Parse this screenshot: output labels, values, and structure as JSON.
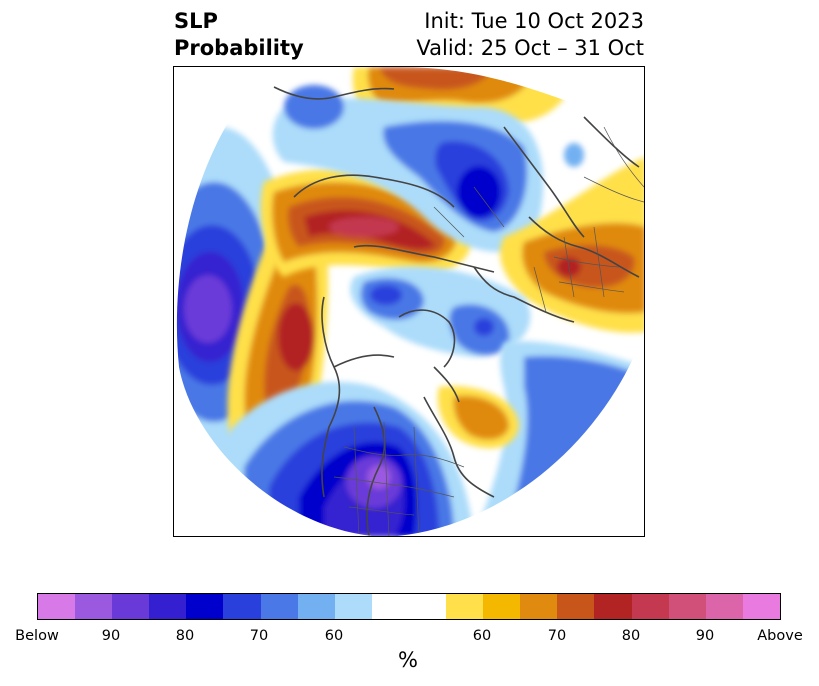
{
  "header": {
    "title_line1": "SLP",
    "title_line2": "Probability",
    "init": "Init: Tue 10 Oct 2023",
    "valid": "Valid: 25 Oct – 31 Oct"
  },
  "colorbar": {
    "colors": [
      "#d77ae8",
      "#9b59e0",
      "#6a3ad8",
      "#3420d0",
      "#0000cc",
      "#2a40dc",
      "#4a78e6",
      "#72b0f2",
      "#acdcfa",
      "#ffffff",
      "#ffffff",
      "#ffe04a",
      "#f4b800",
      "#e08a10",
      "#c8561a",
      "#b22424",
      "#c43850",
      "#d0507a",
      "#dc64a8",
      "#e87ae0"
    ],
    "tick_labels": [
      "Below",
      "90",
      "80",
      "70",
      "60",
      "60",
      "70",
      "80",
      "90",
      "Above"
    ],
    "unit": "%"
  }
}
